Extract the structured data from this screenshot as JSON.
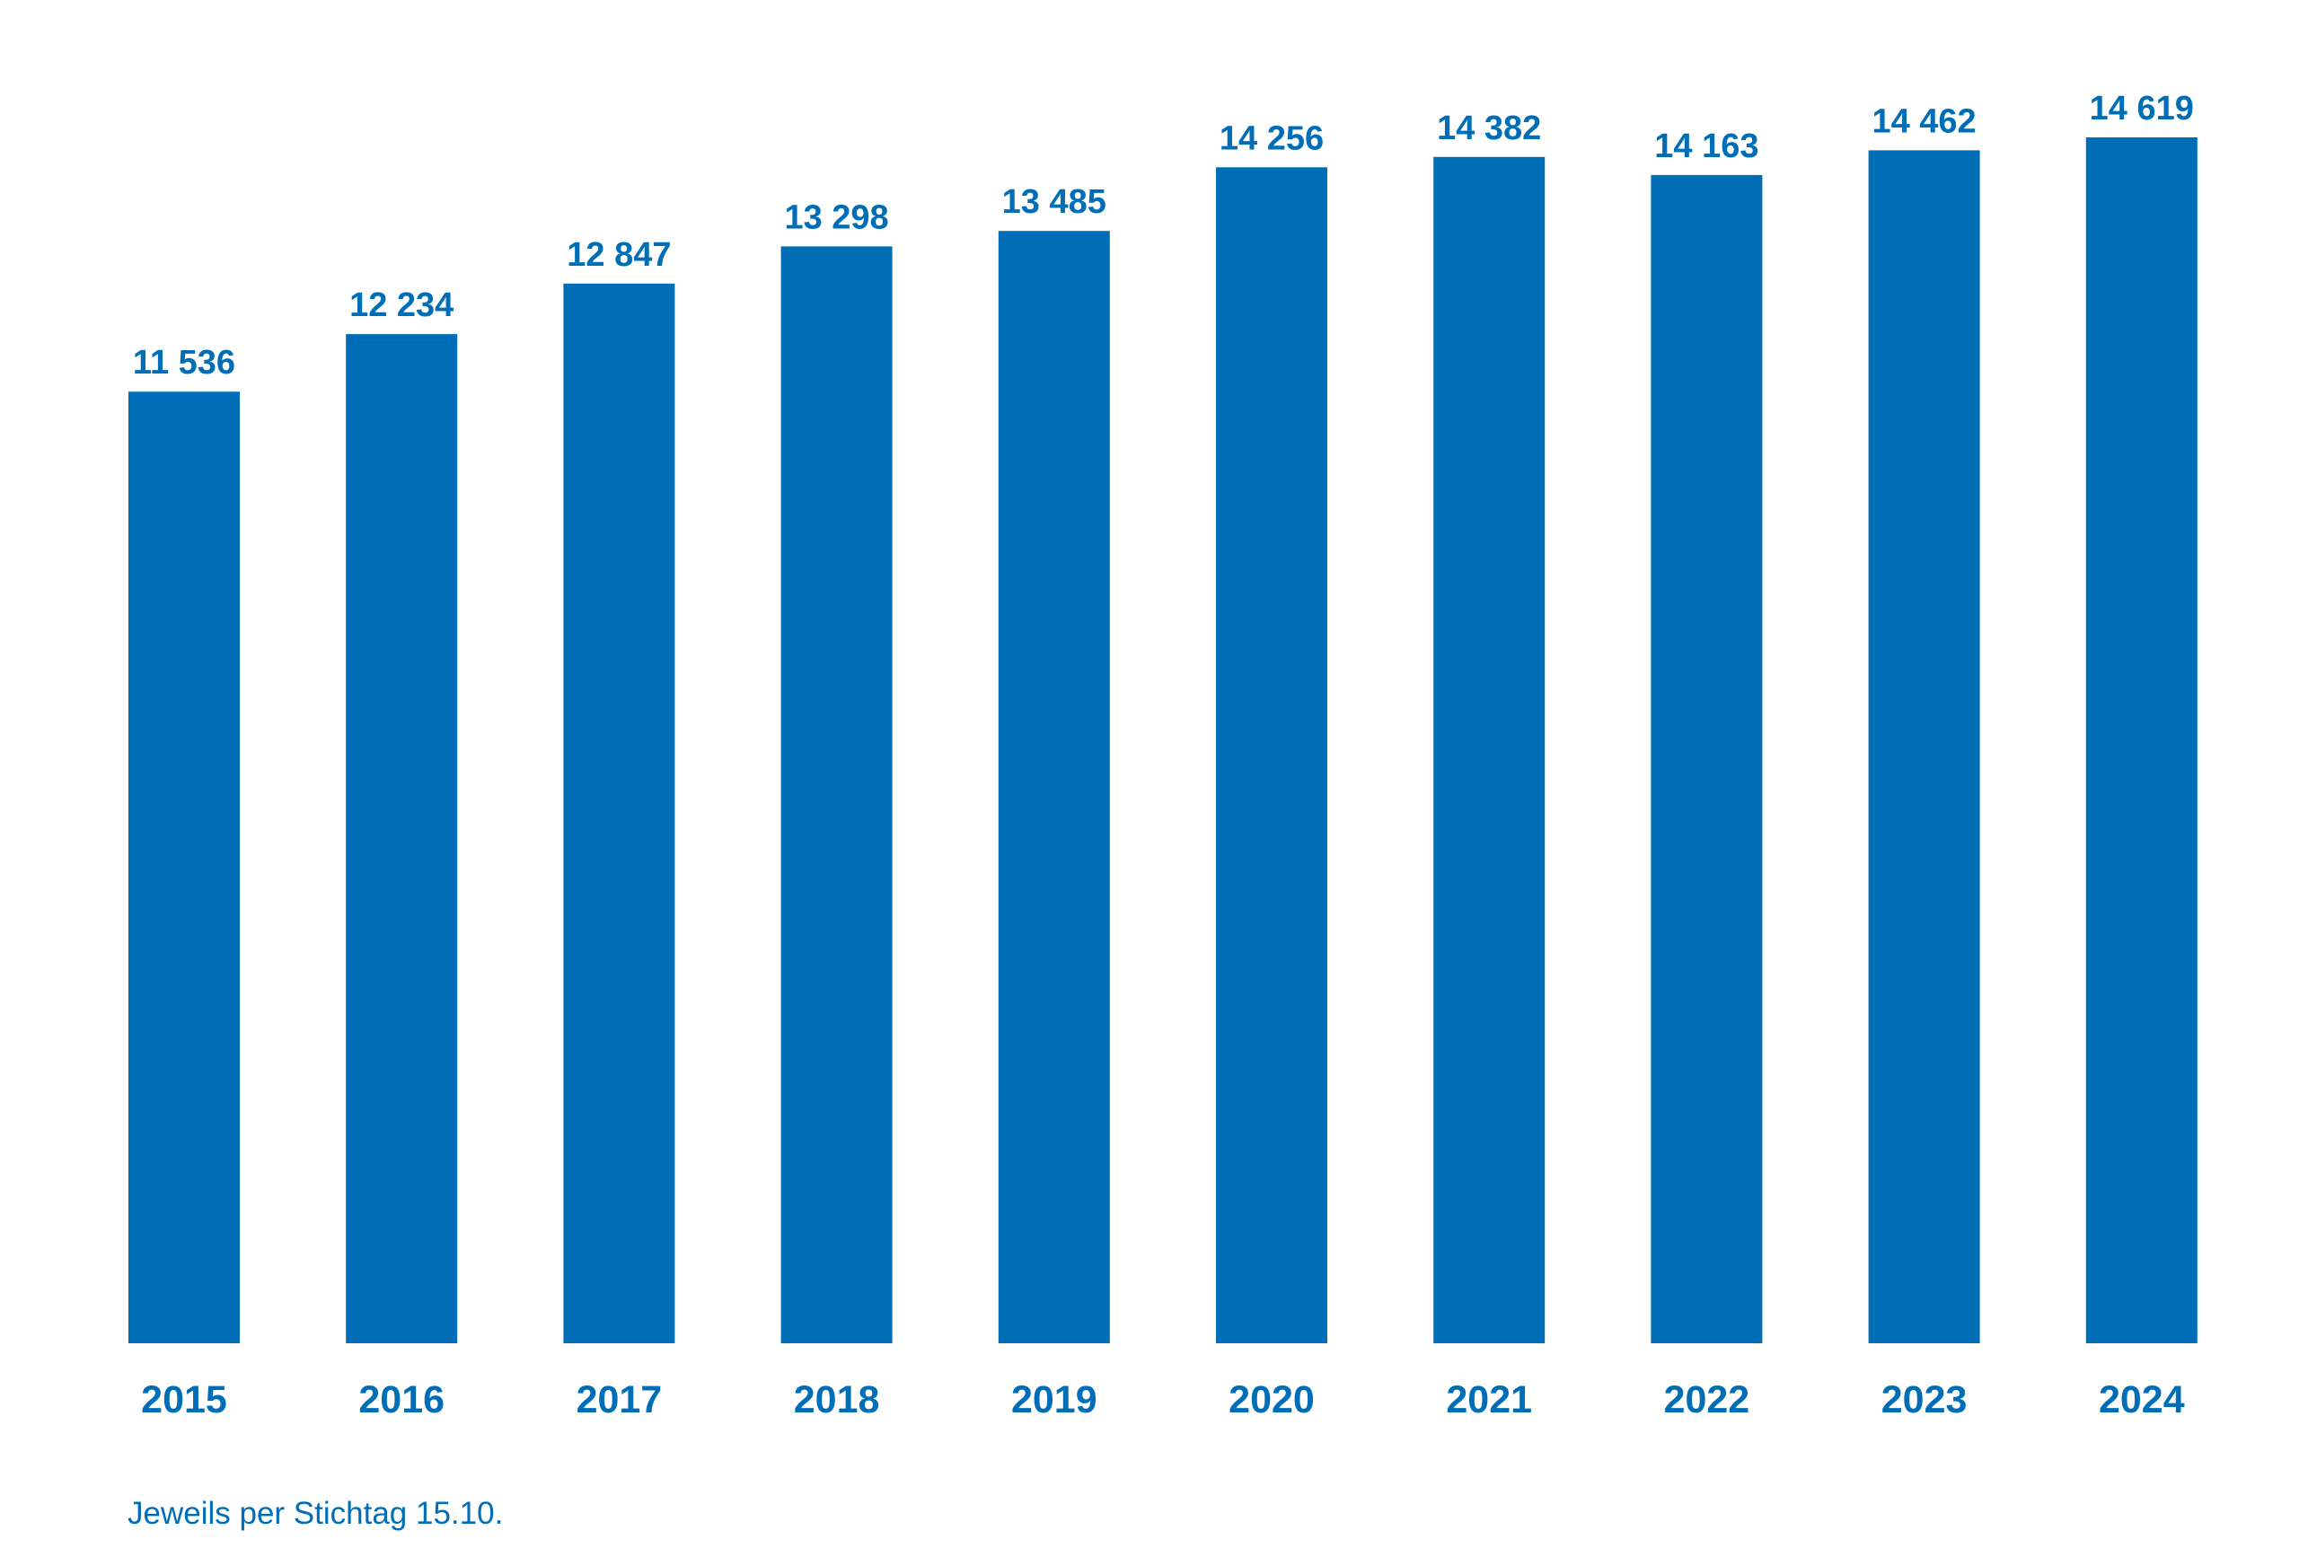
{
  "chart_data": {
    "type": "bar",
    "categories": [
      "2015",
      "2016",
      "2017",
      "2018",
      "2019",
      "2020",
      "2021",
      "2022",
      "2023",
      "2024"
    ],
    "values": [
      11536,
      12234,
      12847,
      13298,
      13485,
      14256,
      14382,
      14163,
      14462,
      14619
    ],
    "value_labels": [
      "11 536",
      "12 234",
      "12 847",
      "13 298",
      "13 485",
      "14 256",
      "14 382",
      "14 163",
      "14 462",
      "14 619"
    ],
    "ylim": [
      0,
      14619
    ],
    "grid": false,
    "legend": "none"
  },
  "footnote": "Jeweils per Stichtag 15.10.",
  "colors": {
    "bar": "#006eb7",
    "text": "#006eb7"
  }
}
